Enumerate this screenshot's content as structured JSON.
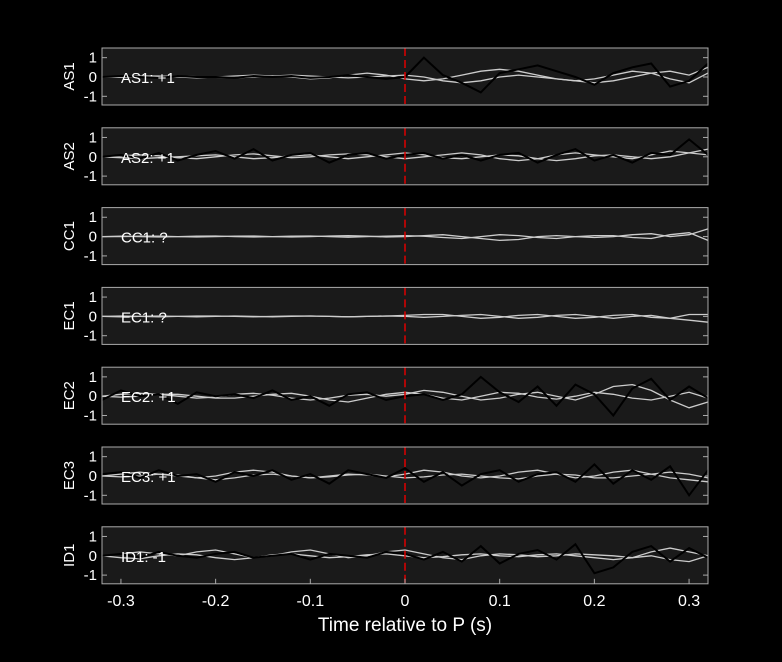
{
  "chart_data": [
    {
      "type": "line",
      "ylabel": "AS1",
      "annotation": "AS1: +1",
      "annotation_color": "#d40000",
      "x": [
        -0.32,
        -0.3,
        -0.28,
        -0.26,
        -0.24,
        -0.22,
        -0.2,
        -0.18,
        -0.16,
        -0.14,
        -0.12,
        -0.1,
        -0.08,
        -0.06,
        -0.04,
        -0.02,
        0,
        0.02,
        0.04,
        0.06,
        0.08,
        0.1,
        0.12,
        0.14,
        0.16,
        0.18,
        0.2,
        0.22,
        0.24,
        0.26,
        0.28,
        0.3,
        0.32
      ],
      "series": [
        {
          "color": "#cccccc",
          "values": [
            0,
            0.02,
            0.05,
            0.05,
            0,
            -0.05,
            0,
            0.05,
            0.1,
            0.05,
            0,
            -0.1,
            -0.05,
            0.1,
            0.2,
            0.1,
            -0.1,
            -0.2,
            -0.1,
            0.1,
            0.3,
            0.4,
            0.3,
            0.1,
            -0.1,
            -0.2,
            -0.1,
            0.1,
            0.3,
            0.2,
            -0.1,
            -0.3,
            0.2
          ]
        },
        {
          "color": "#cccccc",
          "values": [
            0,
            -0.02,
            0,
            0.03,
            0.05,
            0.02,
            -0.02,
            -0.05,
            0,
            0.05,
            0.1,
            0.05,
            0,
            -0.05,
            0,
            0.05,
            0.1,
            0,
            -0.2,
            -0.3,
            -0.2,
            0,
            0.1,
            0,
            -0.1,
            -0.2,
            -0.3,
            -0.2,
            0,
            0.2,
            0.3,
            0.1,
            0.5
          ]
        },
        {
          "color": "#000000",
          "values": [
            0,
            0.05,
            0,
            -0.05,
            0.05,
            0,
            0,
            -0.05,
            0.05,
            0,
            0.05,
            -0.05,
            0,
            0.1,
            0,
            -0.1,
            0,
            1,
            0.1,
            -0.3,
            -0.8,
            0.2,
            0.4,
            0.6,
            0.3,
            0,
            -0.4,
            0.2,
            0.5,
            0.7,
            -0.5,
            -0.2,
            0.7
          ]
        }
      ],
      "xlim": [
        -0.32,
        0.32
      ],
      "ylim": [
        -1.45,
        1.5
      ],
      "yticks": [
        -1,
        0,
        1
      ],
      "vline_x": 0,
      "vline_color": "#e00000"
    },
    {
      "type": "line",
      "ylabel": "AS2",
      "annotation": "AS2: +1",
      "annotation_color": "#d40000",
      "x": [
        -0.32,
        -0.3,
        -0.28,
        -0.26,
        -0.24,
        -0.22,
        -0.2,
        -0.18,
        -0.16,
        -0.14,
        -0.12,
        -0.1,
        -0.08,
        -0.06,
        -0.04,
        -0.02,
        0,
        0.02,
        0.04,
        0.06,
        0.08,
        0.1,
        0.12,
        0.14,
        0.16,
        0.18,
        0.2,
        0.22,
        0.24,
        0.26,
        0.28,
        0.3,
        0.32
      ],
      "series": [
        {
          "color": "#cccccc",
          "values": [
            0,
            0.05,
            0.1,
            0.05,
            -0.05,
            -0.1,
            0,
            0.1,
            0.15,
            0.05,
            -0.05,
            0,
            0.1,
            0.15,
            0.1,
            0,
            -0.1,
            0,
            0.1,
            0.2,
            0.1,
            -0.1,
            -0.2,
            -0.1,
            0.1,
            0.2,
            0.1,
            0,
            -0.1,
            0.1,
            0.3,
            0.2,
            0.4
          ]
        },
        {
          "color": "#cccccc",
          "values": [
            0,
            -0.05,
            -0.1,
            -0.05,
            0,
            0.05,
            0.1,
            0,
            -0.1,
            -0.05,
            0.05,
            0.1,
            0,
            -0.1,
            0,
            0.1,
            0.2,
            0.1,
            -0.05,
            -0.1,
            0,
            0.1,
            0.05,
            -0.1,
            -0.2,
            -0.1,
            0.05,
            0.1,
            0,
            -0.1,
            0,
            0.2,
            0.1
          ]
        },
        {
          "color": "#000000",
          "values": [
            0,
            0.1,
            -0.1,
            0.2,
            -0.2,
            0.1,
            0.3,
            -0.1,
            0.4,
            -0.2,
            0.1,
            0.2,
            -0.3,
            0.1,
            0.2,
            -0.1,
            0.1,
            0.2,
            -0.1,
            0.1,
            -0.2,
            0.1,
            0.2,
            -0.3,
            0.1,
            0.4,
            -0.2,
            0.1,
            -0.3,
            0.2,
            0.1,
            0.9,
            0.1
          ]
        }
      ],
      "xlim": [
        -0.32,
        0.32
      ],
      "ylim": [
        -1.45,
        1.5
      ],
      "yticks": [
        -1,
        0,
        1
      ],
      "vline_x": 0,
      "vline_color": "#e00000"
    },
    {
      "type": "line",
      "ylabel": "CC1",
      "annotation": "CC1: ?",
      "annotation_color": "#999999",
      "x": [
        -0.32,
        -0.3,
        -0.28,
        -0.26,
        -0.24,
        -0.22,
        -0.2,
        -0.18,
        -0.16,
        -0.14,
        -0.12,
        -0.1,
        -0.08,
        -0.06,
        -0.04,
        -0.02,
        0,
        0.02,
        0.04,
        0.06,
        0.08,
        0.1,
        0.12,
        0.14,
        0.16,
        0.18,
        0.2,
        0.22,
        0.24,
        0.26,
        0.28,
        0.3,
        0.32
      ],
      "series": [
        {
          "color": "#cccccc",
          "values": [
            0,
            0,
            0.02,
            0.02,
            0,
            -0.02,
            0,
            0.02,
            0.03,
            0,
            -0.02,
            0,
            0.03,
            0.05,
            0.02,
            -0.02,
            0,
            0.05,
            0.1,
            0,
            -0.1,
            -0.2,
            -0.15,
            0,
            0.05,
            0,
            -0.05,
            0,
            0.1,
            0.15,
            0,
            0.1,
            0.4
          ]
        },
        {
          "color": "#cccccc",
          "values": [
            0,
            0.02,
            0,
            -0.02,
            0,
            0.02,
            0.03,
            0,
            -0.02,
            0,
            0.02,
            0.03,
            0,
            -0.03,
            0,
            0.02,
            0.05,
            0.02,
            -0.05,
            -0.1,
            0,
            0.1,
            0.05,
            -0.05,
            -0.1,
            0,
            0.05,
            0.05,
            -0.05,
            -0.1,
            0.1,
            0.2,
            -0.2
          ]
        }
      ],
      "xlim": [
        -0.32,
        0.32
      ],
      "ylim": [
        -1.45,
        1.5
      ],
      "yticks": [
        -1,
        0,
        1
      ],
      "vline_x": 0,
      "vline_color": "#e00000"
    },
    {
      "type": "line",
      "ylabel": "EC1",
      "annotation": "EC1: ?",
      "annotation_color": "#999999",
      "x": [
        -0.32,
        -0.3,
        -0.28,
        -0.26,
        -0.24,
        -0.22,
        -0.2,
        -0.18,
        -0.16,
        -0.14,
        -0.12,
        -0.1,
        -0.08,
        -0.06,
        -0.04,
        -0.02,
        0,
        0.02,
        0.04,
        0.06,
        0.08,
        0.1,
        0.12,
        0.14,
        0.16,
        0.18,
        0.2,
        0.22,
        0.24,
        0.26,
        0.28,
        0.3,
        0.32
      ],
      "series": [
        {
          "color": "#cccccc",
          "values": [
            0,
            0.02,
            0,
            -0.02,
            0,
            0.02,
            0.02,
            0,
            -0.02,
            0,
            0.02,
            0.02,
            0,
            -0.02,
            0,
            0.02,
            0.05,
            0.1,
            0.1,
            0,
            -0.1,
            -0.05,
            0.05,
            0.1,
            0,
            -0.1,
            -0.05,
            0.05,
            0.1,
            -0.05,
            -0.1,
            0.1,
            0.1
          ]
        },
        {
          "color": "#cccccc",
          "values": [
            0,
            -0.02,
            0,
            0.02,
            0,
            -0.02,
            0,
            0.02,
            0,
            -0.02,
            0,
            0.02,
            0,
            -0.02,
            0,
            0.02,
            0,
            -0.05,
            0,
            0.05,
            0.1,
            0,
            -0.1,
            -0.05,
            0.05,
            0.1,
            0,
            -0.1,
            0,
            0.05,
            -0.1,
            -0.2,
            -0.3
          ]
        }
      ],
      "xlim": [
        -0.32,
        0.32
      ],
      "ylim": [
        -1.45,
        1.5
      ],
      "yticks": [
        -1,
        0,
        1
      ],
      "vline_x": 0,
      "vline_color": "#e00000"
    },
    {
      "type": "line",
      "ylabel": "EC2",
      "annotation": "EC2: +1",
      "annotation_color": "#d40000",
      "x": [
        -0.32,
        -0.3,
        -0.28,
        -0.26,
        -0.24,
        -0.22,
        -0.2,
        -0.18,
        -0.16,
        -0.14,
        -0.12,
        -0.1,
        -0.08,
        -0.06,
        -0.04,
        -0.02,
        0,
        0.02,
        0.04,
        0.06,
        0.08,
        0.1,
        0.12,
        0.14,
        0.16,
        0.18,
        0.2,
        0.22,
        0.24,
        0.26,
        0.28,
        0.3,
        0.32
      ],
      "series": [
        {
          "color": "#cccccc",
          "values": [
            0,
            0.1,
            0.15,
            0.1,
            0,
            -0.1,
            -0.05,
            0.1,
            0.15,
            0.05,
            -0.1,
            -0.2,
            -0.1,
            0.05,
            0.1,
            0,
            0.1,
            0.3,
            0.2,
            0,
            -0.2,
            -0.1,
            0.1,
            0.2,
            0,
            -0.2,
            0.1,
            0.5,
            0.6,
            0.3,
            -0.2,
            -0.6,
            -0.3
          ]
        },
        {
          "color": "#cccccc",
          "values": [
            0,
            -0.05,
            0,
            0.1,
            0.1,
            0,
            -0.1,
            -0.1,
            0,
            0.1,
            0.15,
            0,
            -0.2,
            -0.3,
            -0.1,
            0.1,
            0.2,
            0.1,
            -0.1,
            -0.2,
            0,
            0.2,
            0.15,
            -0.05,
            -0.15,
            0,
            0.2,
            0.1,
            -0.1,
            -0.2,
            0,
            0.2,
            -0.1
          ]
        },
        {
          "color": "#000000",
          "values": [
            -0.2,
            0.3,
            0,
            0.1,
            -0.4,
            0.2,
            0,
            0.1,
            -0.1,
            0.3,
            -0.2,
            0,
            -0.5,
            0.1,
            0.2,
            -0.2,
            0,
            0.1,
            -0.2,
            0.1,
            1,
            0.2,
            -0.3,
            0.5,
            -0.5,
            0.6,
            0.1,
            -1,
            0.4,
            0.9,
            -0.2,
            0.5,
            -0.1
          ]
        }
      ],
      "xlim": [
        -0.32,
        0.32
      ],
      "ylim": [
        -1.45,
        1.5
      ],
      "yticks": [
        -1,
        0,
        1
      ],
      "vline_x": 0,
      "vline_color": "#e00000"
    },
    {
      "type": "line",
      "ylabel": "EC3",
      "annotation": "EC3: +1",
      "annotation_color": "#d40000",
      "x": [
        -0.32,
        -0.3,
        -0.28,
        -0.26,
        -0.24,
        -0.22,
        -0.2,
        -0.18,
        -0.16,
        -0.14,
        -0.12,
        -0.1,
        -0.08,
        -0.06,
        -0.04,
        -0.02,
        0,
        0.02,
        0.04,
        0.06,
        0.08,
        0.1,
        0.12,
        0.14,
        0.16,
        0.18,
        0.2,
        0.22,
        0.24,
        0.26,
        0.28,
        0.3,
        0.32
      ],
      "series": [
        {
          "color": "#cccccc",
          "values": [
            0,
            0.1,
            0.2,
            0.1,
            0,
            -0.1,
            0,
            0.2,
            0.3,
            0.2,
            0,
            -0.1,
            0,
            0.1,
            0.05,
            -0.05,
            0.1,
            0.3,
            0.2,
            0,
            -0.1,
            0,
            0.2,
            0.3,
            0.1,
            -0.1,
            0,
            0.2,
            0.3,
            0.1,
            -0.1,
            -0.2,
            -0.3
          ]
        },
        {
          "color": "#cccccc",
          "values": [
            0,
            -0.05,
            0,
            0.1,
            0.05,
            -0.1,
            -0.2,
            -0.1,
            0.05,
            0.1,
            0,
            -0.1,
            -0.05,
            0.05,
            0.1,
            0,
            -0.1,
            -0.05,
            0.05,
            0.1,
            0,
            -0.1,
            -0.15,
            0,
            0.1,
            0.05,
            -0.1,
            -0.1,
            0,
            0.1,
            0.2,
            0.1,
            -0.1
          ]
        },
        {
          "color": "#000000",
          "values": [
            0.1,
            0.2,
            -0.1,
            0.3,
            0,
            0.1,
            -0.3,
            0.2,
            0,
            0.3,
            -0.2,
            0.1,
            -0.4,
            0.3,
            0.1,
            -0.1,
            0.4,
            -0.3,
            0.2,
            -0.5,
            0.1,
            0.3,
            -0.3,
            0.1,
            0.2,
            -0.3,
            0.6,
            -0.4,
            0.3,
            -0.2,
            0.5,
            -1,
            0.3
          ]
        }
      ],
      "xlim": [
        -0.32,
        0.32
      ],
      "ylim": [
        -1.45,
        1.5
      ],
      "yticks": [
        -1,
        0,
        1
      ],
      "vline_x": 0,
      "vline_color": "#e00000"
    },
    {
      "type": "line",
      "ylabel": "ID1",
      "annotation": "ID1: -1",
      "annotation_color": "#1a1aa0",
      "x": [
        -0.32,
        -0.3,
        -0.28,
        -0.26,
        -0.24,
        -0.22,
        -0.2,
        -0.18,
        -0.16,
        -0.14,
        -0.12,
        -0.1,
        -0.08,
        -0.06,
        -0.04,
        -0.02,
        0,
        0.02,
        0.04,
        0.06,
        0.08,
        0.1,
        0.12,
        0.14,
        0.16,
        0.18,
        0.2,
        0.22,
        0.24,
        0.26,
        0.28,
        0.3,
        0.32
      ],
      "series": [
        {
          "color": "#cccccc",
          "values": [
            0,
            0.1,
            0.2,
            0.1,
            0,
            0.2,
            0.3,
            0.1,
            -0.1,
            0,
            0.2,
            0.3,
            0.1,
            -0.1,
            0,
            0.2,
            0.3,
            0.1,
            -0.1,
            -0.2,
            0,
            0.1,
            0.05,
            -0.05,
            0,
            0.1,
            0.05,
            0,
            -0.1,
            0.2,
            0.4,
            0.2,
            0
          ]
        },
        {
          "color": "#cccccc",
          "values": [
            0,
            -0.1,
            -0.15,
            0,
            0.1,
            0.05,
            -0.1,
            -0.2,
            -0.1,
            0.05,
            0.1,
            0,
            -0.1,
            -0.05,
            0.05,
            0.1,
            0,
            -0.1,
            -0.05,
            0.05,
            0.1,
            0,
            -0.05,
            0.05,
            0.1,
            0,
            -0.1,
            -0.2,
            -0.1,
            0,
            -0.2,
            -0.3,
            0
          ]
        },
        {
          "color": "#000000",
          "values": [
            0,
            0.1,
            -0.1,
            0.2,
            0,
            -0.1,
            0.1,
            0.2,
            -0.1,
            0,
            0.1,
            -0.2,
            0.1,
            0,
            -0.1,
            0.2,
            0.1,
            -0.2,
            0.2,
            -0.3,
            0.5,
            -0.4,
            0.1,
            0.3,
            -0.2,
            0.6,
            -0.9,
            -0.6,
            0.2,
            0.5,
            -0.3,
            0.4,
            -0.1
          ]
        }
      ],
      "xlim": [
        -0.32,
        0.32
      ],
      "ylim": [
        -1.45,
        1.5
      ],
      "yticks": [
        -1,
        0,
        1
      ],
      "vline_x": 0,
      "vline_color": "#e00000",
      "xticks": [
        -0.3,
        -0.2,
        -0.1,
        0,
        0.1,
        0.2,
        0.3
      ],
      "xlabel": "Time relative to P (s)"
    }
  ]
}
